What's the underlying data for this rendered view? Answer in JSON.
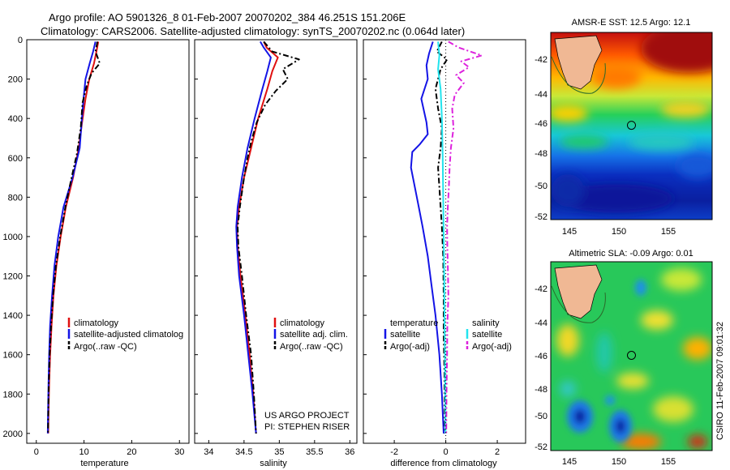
{
  "header": {
    "title_line1": "Argo profile: AO 5901326_8 01-Feb-2007 20070202_384 46.251S 151.206E",
    "title_line2": "Climatology: CARS2006. Satellite-adjusted climatology: synTS_20070202.nc (0.064d later)"
  },
  "side_label": "CSIRO 11-Feb-2007 09:01:32",
  "credit": {
    "line1": "US ARGO PROJECT",
    "line2": "PI: STEPHEN RISER"
  },
  "colors": {
    "climatology": "#e01010",
    "satellite": "#1414e6",
    "argo": "#000000",
    "argo_adj": "#dd22dd",
    "satellite_diff": "#22e4ee"
  },
  "chart_data": [
    {
      "type": "line",
      "xlabel": "temperature",
      "xlim": [
        -2,
        32
      ],
      "xticks": [
        0,
        10,
        20,
        30
      ],
      "ylim": [
        2050,
        0
      ],
      "yticks": [
        0,
        200,
        400,
        600,
        800,
        1000,
        1200,
        1400,
        1600,
        1800,
        2000
      ],
      "legend": {
        "entries": [
          "climatology",
          "satellite-adjusted climatolog",
          "Argo(..raw -QC)"
        ],
        "placement": "bottom-right"
      },
      "series": [
        {
          "name": "climatology",
          "color": "#e01010",
          "dash": "solid",
          "points": [
            [
              13,
              10
            ],
            [
              12.6,
              60
            ],
            [
              12.1,
              120
            ],
            [
              11.1,
              200
            ],
            [
              10.3,
              300
            ],
            [
              9.6,
              420
            ],
            [
              8.9,
              550
            ],
            [
              7.7,
              700
            ],
            [
              6.2,
              850
            ],
            [
              5.1,
              1000
            ],
            [
              4.2,
              1150
            ],
            [
              3.6,
              1300
            ],
            [
              3.2,
              1450
            ],
            [
              2.9,
              1600
            ],
            [
              2.7,
              1750
            ],
            [
              2.55,
              1900
            ],
            [
              2.5,
              2000
            ]
          ]
        },
        {
          "name": "satellite-adjusted climatolog",
          "color": "#1414e6",
          "dash": "solid",
          "points": [
            [
              12.4,
              10
            ],
            [
              11.9,
              60
            ],
            [
              11.2,
              120
            ],
            [
              10.3,
              200
            ],
            [
              9.9,
              300
            ],
            [
              9.5,
              420
            ],
            [
              9.1,
              550
            ],
            [
              7.6,
              700
            ],
            [
              5.7,
              850
            ],
            [
              4.6,
              1000
            ],
            [
              3.8,
              1150
            ],
            [
              3.3,
              1300
            ],
            [
              2.9,
              1450
            ],
            [
              2.7,
              1600
            ],
            [
              2.55,
              1750
            ],
            [
              2.45,
              1900
            ],
            [
              2.4,
              2000
            ]
          ]
        },
        {
          "name": "Argo(..raw -QC)",
          "color": "#000000",
          "dash": "dashdot",
          "points": [
            [
              12.8,
              10
            ],
            [
              12.4,
              60
            ],
            [
              13.3,
              120
            ],
            [
              11.6,
              170
            ],
            [
              10.6,
              230
            ],
            [
              9.7,
              320
            ],
            [
              9.3,
              450
            ],
            [
              8.5,
              580
            ],
            [
              7.4,
              700
            ],
            [
              6.1,
              850
            ],
            [
              5.0,
              1000
            ],
            [
              4.1,
              1150
            ],
            [
              3.5,
              1300
            ],
            [
              3.1,
              1450
            ],
            [
              2.8,
              1600
            ],
            [
              2.6,
              1750
            ],
            [
              2.5,
              1900
            ],
            [
              2.45,
              2000
            ]
          ]
        }
      ]
    },
    {
      "type": "line",
      "xlabel": "salinity",
      "xlim": [
        33.8,
        36.1
      ],
      "xticks": [
        34,
        34.5,
        35,
        35.5,
        36
      ],
      "ylim": [
        2050,
        0
      ],
      "legend": {
        "entries": [
          "climatology",
          "satellite adj. clim.",
          "Argo(..raw -QC)"
        ],
        "placement": "bottom-right"
      },
      "series": [
        {
          "name": "climatology",
          "color": "#e01010",
          "dash": "solid",
          "points": [
            [
              34.78,
              10
            ],
            [
              34.82,
              40
            ],
            [
              34.98,
              90
            ],
            [
              34.9,
              160
            ],
            [
              34.83,
              250
            ],
            [
              34.7,
              400
            ],
            [
              34.6,
              550
            ],
            [
              34.5,
              700
            ],
            [
              34.43,
              850
            ],
            [
              34.4,
              950
            ],
            [
              34.41,
              1050
            ],
            [
              34.45,
              1200
            ],
            [
              34.52,
              1400
            ],
            [
              34.58,
              1600
            ],
            [
              34.63,
              1800
            ],
            [
              34.67,
              2000
            ]
          ]
        },
        {
          "name": "satellite adj. clim.",
          "color": "#1414e6",
          "dash": "solid",
          "points": [
            [
              34.73,
              10
            ],
            [
              34.78,
              40
            ],
            [
              34.88,
              90
            ],
            [
              34.83,
              160
            ],
            [
              34.76,
              250
            ],
            [
              34.65,
              400
            ],
            [
              34.55,
              550
            ],
            [
              34.47,
              700
            ],
            [
              34.41,
              850
            ],
            [
              34.39,
              950
            ],
            [
              34.4,
              1050
            ],
            [
              34.43,
              1200
            ],
            [
              34.5,
              1400
            ],
            [
              34.56,
              1600
            ],
            [
              34.62,
              1800
            ],
            [
              34.67,
              2000
            ]
          ]
        },
        {
          "name": "Argo(..raw -QC)",
          "color": "#000000",
          "dash": "dashdot",
          "points": [
            [
              34.78,
              10
            ],
            [
              34.9,
              60
            ],
            [
              35.28,
              100
            ],
            [
              35.05,
              150
            ],
            [
              35.12,
              200
            ],
            [
              34.95,
              260
            ],
            [
              34.8,
              330
            ],
            [
              34.68,
              420
            ],
            [
              34.6,
              520
            ],
            [
              34.55,
              600
            ],
            [
              34.5,
              700
            ],
            [
              34.44,
              850
            ],
            [
              34.41,
              950
            ],
            [
              34.42,
              1050
            ],
            [
              34.47,
              1200
            ],
            [
              34.53,
              1400
            ],
            [
              34.6,
              1600
            ],
            [
              34.64,
              1800
            ],
            [
              34.67,
              2000
            ]
          ]
        }
      ]
    },
    {
      "type": "line",
      "xlabel": "difference from climatology",
      "xlim": [
        -3.2,
        3.1
      ],
      "xticks": [
        -2,
        0,
        2
      ],
      "ylim": [
        2050,
        0
      ],
      "legend": {
        "entries": [
          "temperature",
          "satellite",
          "Argo(-adj)",
          "salinity",
          "satellite",
          "Argo(-adj)"
        ],
        "placement": "bottom-center"
      },
      "series": [
        {
          "name": "satellite",
          "group": "temperature",
          "color": "#1414e6",
          "dash": "solid",
          "points": [
            [
              -0.5,
              10
            ],
            [
              -0.65,
              70
            ],
            [
              -0.75,
              130
            ],
            [
              -0.7,
              200
            ],
            [
              -0.95,
              300
            ],
            [
              -0.75,
              420
            ],
            [
              -0.7,
              480
            ],
            [
              -1.0,
              530
            ],
            [
              -1.3,
              570
            ],
            [
              -1.35,
              650
            ],
            [
              -1.2,
              750
            ],
            [
              -1.05,
              850
            ],
            [
              -0.9,
              950
            ],
            [
              -0.7,
              1100
            ],
            [
              -0.55,
              1250
            ],
            [
              -0.4,
              1400
            ],
            [
              -0.25,
              1600
            ],
            [
              -0.15,
              1800
            ],
            [
              -0.08,
              2000
            ]
          ]
        },
        {
          "name": "Argo(-adj)",
          "group": "temperature",
          "color": "#000000",
          "dash": "dashdot",
          "points": [
            [
              -0.15,
              10
            ],
            [
              -0.35,
              60
            ],
            [
              0.05,
              100
            ],
            [
              -0.2,
              150
            ],
            [
              -0.4,
              250
            ],
            [
              -0.3,
              350
            ],
            [
              -0.15,
              450
            ],
            [
              -0.2,
              550
            ],
            [
              -0.3,
              650
            ],
            [
              -0.25,
              750
            ],
            [
              -0.2,
              850
            ],
            [
              -0.15,
              950
            ],
            [
              -0.1,
              1100
            ],
            [
              -0.08,
              1300
            ],
            [
              -0.08,
              1500
            ],
            [
              -0.05,
              1700
            ],
            [
              -0.04,
              1900
            ],
            [
              -0.03,
              2000
            ]
          ]
        },
        {
          "name": "satellite",
          "group": "salinity",
          "color": "#22e4ee",
          "dash": "solid",
          "points": [
            [
              -0.3,
              10
            ],
            [
              -0.25,
              80
            ],
            [
              -0.3,
              150
            ],
            [
              -0.2,
              250
            ],
            [
              -0.15,
              400
            ],
            [
              -0.12,
              600
            ],
            [
              -0.1,
              800
            ],
            [
              -0.08,
              1000
            ],
            [
              -0.06,
              1200
            ],
            [
              -0.05,
              1400
            ],
            [
              -0.03,
              1600
            ],
            [
              -0.02,
              1800
            ],
            [
              -0.01,
              2000
            ]
          ]
        },
        {
          "name": "Argo(-adj)",
          "group": "salinity",
          "color": "#dd22dd",
          "dash": "dashdot",
          "points": [
            [
              0.1,
              10
            ],
            [
              0.5,
              40
            ],
            [
              1.4,
              80
            ],
            [
              0.6,
              110
            ],
            [
              0.9,
              140
            ],
            [
              0.4,
              180
            ],
            [
              0.7,
              220
            ],
            [
              0.35,
              280
            ],
            [
              0.25,
              350
            ],
            [
              0.3,
              450
            ],
            [
              0.2,
              550
            ],
            [
              0.15,
              650
            ],
            [
              0.12,
              750
            ],
            [
              0.08,
              850
            ],
            [
              0.05,
              950
            ],
            [
              0.06,
              1050
            ],
            [
              0.08,
              1150
            ],
            [
              0.1,
              1300
            ],
            [
              0.06,
              1450
            ],
            [
              0.05,
              1600
            ],
            [
              0.03,
              1800
            ],
            [
              0.02,
              2000
            ]
          ]
        }
      ]
    }
  ],
  "maps": {
    "sst": {
      "title": "AMSR-E SST: 12.5 Argo: 12.1",
      "yticks": [
        "-42",
        "-44",
        "-46",
        "-48",
        "-50",
        "-52"
      ],
      "xticks": [
        "145",
        "150",
        "155"
      ],
      "marker_lon": 151.2,
      "marker_lat": -46.25
    },
    "sla": {
      "title": "Altimetric SLA: -0.09 Argo: 0.01",
      "yticks": [
        "-42",
        "-44",
        "-46",
        "-48",
        "-50",
        "-52"
      ],
      "xticks": [
        "145",
        "150",
        "155"
      ],
      "marker_lon": 151.2,
      "marker_lat": -46.25
    }
  }
}
